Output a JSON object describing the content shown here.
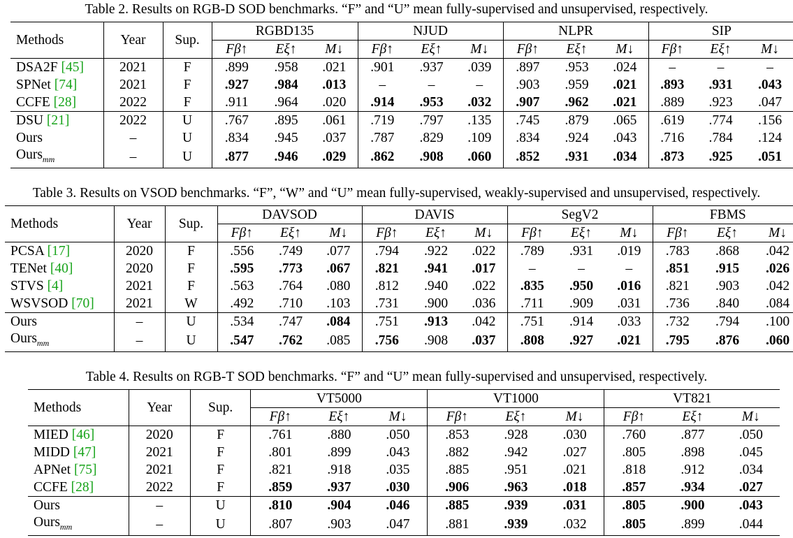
{
  "tables": [
    {
      "caption": "Table 2. Results on RGB-D SOD benchmarks. “F” and “U” mean fully-supervised and unsupervised, respectively.",
      "head": {
        "methods": "Methods",
        "year": "Year",
        "sup": "Sup."
      },
      "datasets": [
        "RGBD135",
        "NJUD",
        "NLPR",
        "SIP"
      ],
      "metrics": [
        "Fβ↑",
        "Eξ↑",
        "M↓"
      ],
      "groups": [
        [
          {
            "name": "DSA2F",
            "cite": "[45]",
            "year": "2021",
            "sup": "F",
            "values": [
              ".899",
              ".958",
              ".021",
              ".901",
              ".937",
              ".039",
              ".897",
              ".953",
              ".024",
              "–",
              "–",
              "–"
            ],
            "bold": []
          },
          {
            "name": "SPNet",
            "cite": "[74]",
            "year": "2021",
            "sup": "F",
            "values": [
              ".927",
              ".984",
              ".013",
              "–",
              "–",
              "–",
              ".903",
              ".959",
              ".021",
              ".893",
              ".931",
              ".043"
            ],
            "bold": [
              0,
              1,
              2,
              8,
              9,
              10,
              11
            ]
          },
          {
            "name": "CCFE",
            "cite": "[28]",
            "year": "2022",
            "sup": "F",
            "values": [
              ".911",
              ".964",
              ".020",
              ".914",
              ".953",
              ".032",
              ".907",
              ".962",
              ".021",
              ".889",
              ".923",
              ".047"
            ],
            "bold": [
              3,
              4,
              5,
              6,
              7,
              8
            ]
          }
        ],
        [
          {
            "name": "DSU",
            "cite": "[21]",
            "year": "2022",
            "sup": "U",
            "values": [
              ".767",
              ".895",
              ".061",
              ".719",
              ".797",
              ".135",
              ".745",
              ".879",
              ".065",
              ".619",
              ".774",
              ".156"
            ],
            "bold": []
          },
          {
            "name": "Ours",
            "cite": "",
            "year": "–",
            "sup": "U",
            "values": [
              ".834",
              ".945",
              ".037",
              ".787",
              ".829",
              ".109",
              ".834",
              ".924",
              ".043",
              ".716",
              ".784",
              ".124"
            ],
            "bold": []
          },
          {
            "name": "Ours",
            "sub": "mm",
            "cite": "",
            "year": "–",
            "sup": "U",
            "values": [
              ".877",
              ".946",
              ".029",
              ".862",
              ".908",
              ".060",
              ".852",
              ".931",
              ".034",
              ".873",
              ".925",
              ".051"
            ],
            "bold": [
              0,
              1,
              2,
              3,
              4,
              5,
              6,
              7,
              8,
              9,
              10,
              11
            ]
          }
        ]
      ]
    },
    {
      "caption": "Table 3. Results on VSOD benchmarks. “F”, “W” and “U” mean fully-supervised, weakly-supervised and unsupervised, respectively.",
      "head": {
        "methods": "Methods",
        "year": "Year",
        "sup": "Sup."
      },
      "datasets": [
        "DAVSOD",
        "DAVIS",
        "SegV2",
        "FBMS"
      ],
      "metrics": [
        "Fβ↑",
        "Eξ↑",
        "M↓"
      ],
      "groups": [
        [
          {
            "name": "PCSA",
            "cite": "[17]",
            "year": "2020",
            "sup": "F",
            "values": [
              ".556",
              ".749",
              ".077",
              ".794",
              ".922",
              ".022",
              ".789",
              ".931",
              ".019",
              ".783",
              ".868",
              ".042"
            ],
            "bold": []
          },
          {
            "name": "TENet",
            "cite": "[40]",
            "year": "2020",
            "sup": "F",
            "values": [
              ".595",
              ".773",
              ".067",
              ".821",
              ".941",
              ".017",
              "–",
              "–",
              "–",
              ".851",
              ".915",
              ".026"
            ],
            "bold": [
              0,
              1,
              2,
              3,
              4,
              5,
              9,
              10,
              11
            ]
          },
          {
            "name": "STVS",
            "cite": "[4]",
            "year": "2021",
            "sup": "F",
            "values": [
              ".563",
              ".764",
              ".080",
              ".812",
              ".940",
              ".022",
              ".835",
              ".950",
              ".016",
              ".821",
              ".903",
              ".042"
            ],
            "bold": [
              6,
              7,
              8
            ]
          },
          {
            "name": "WSVSOD",
            "cite": "[70]",
            "year": "2021",
            "sup": "W",
            "values": [
              ".492",
              ".710",
              ".103",
              ".731",
              ".900",
              ".036",
              ".711",
              ".909",
              ".031",
              ".736",
              ".840",
              ".084"
            ],
            "bold": []
          }
        ],
        [
          {
            "name": "Ours",
            "cite": "",
            "year": "–",
            "sup": "U",
            "values": [
              ".534",
              ".747",
              ".084",
              ".751",
              ".913",
              ".042",
              ".751",
              ".914",
              ".033",
              ".732",
              ".794",
              ".100"
            ],
            "bold": [
              2,
              4
            ]
          },
          {
            "name": "Ours",
            "sub": "mm",
            "cite": "",
            "year": "–",
            "sup": "U",
            "values": [
              ".547",
              ".762",
              ".085",
              ".756",
              ".908",
              ".037",
              ".808",
              ".927",
              ".021",
              ".795",
              ".876",
              ".060"
            ],
            "bold": [
              0,
              1,
              3,
              5,
              6,
              7,
              8,
              9,
              10,
              11
            ]
          }
        ]
      ]
    },
    {
      "caption": "Table 4. Results on RGB-T SOD benchmarks. “F” and “U” mean fully-supervised and unsupervised, respectively.",
      "head": {
        "methods": "Methods",
        "year": "Year",
        "sup": "Sup."
      },
      "datasets": [
        "VT5000",
        "VT1000",
        "VT821"
      ],
      "metrics": [
        "Fβ↑",
        "Eξ↑",
        "M↓"
      ],
      "groups": [
        [
          {
            "name": "MIED",
            "cite": "[46]",
            "year": "2020",
            "sup": "F",
            "values": [
              ".761",
              ".880",
              ".050",
              ".853",
              ".928",
              ".030",
              ".760",
              ".877",
              ".050"
            ],
            "bold": []
          },
          {
            "name": "MIDD",
            "cite": "[47]",
            "year": "2021",
            "sup": "F",
            "values": [
              ".801",
              ".899",
              ".043",
              ".882",
              ".942",
              ".027",
              ".805",
              ".898",
              ".045"
            ],
            "bold": []
          },
          {
            "name": "APNet",
            "cite": "[75]",
            "year": "2021",
            "sup": "F",
            "values": [
              ".821",
              ".918",
              ".035",
              ".885",
              ".951",
              ".021",
              ".818",
              ".912",
              ".034"
            ],
            "bold": []
          },
          {
            "name": "CCFE",
            "cite": "[28]",
            "year": "2022",
            "sup": "F",
            "values": [
              ".859",
              ".937",
              ".030",
              ".906",
              ".963",
              ".018",
              ".857",
              ".934",
              ".027"
            ],
            "bold": [
              0,
              1,
              2,
              3,
              4,
              5,
              6,
              7,
              8
            ]
          }
        ],
        [
          {
            "name": "Ours",
            "cite": "",
            "year": "–",
            "sup": "U",
            "values": [
              ".810",
              ".904",
              ".046",
              ".885",
              ".939",
              ".031",
              ".805",
              ".900",
              ".043"
            ],
            "bold": [
              0,
              1,
              2,
              3,
              4,
              5,
              6,
              7,
              8
            ]
          },
          {
            "name": "Ours",
            "sub": "mm",
            "cite": "",
            "year": "–",
            "sup": "U",
            "values": [
              ".807",
              ".903",
              ".047",
              ".881",
              ".939",
              ".032",
              ".805",
              ".899",
              ".044"
            ],
            "bold": [
              4,
              6
            ]
          }
        ]
      ]
    }
  ]
}
